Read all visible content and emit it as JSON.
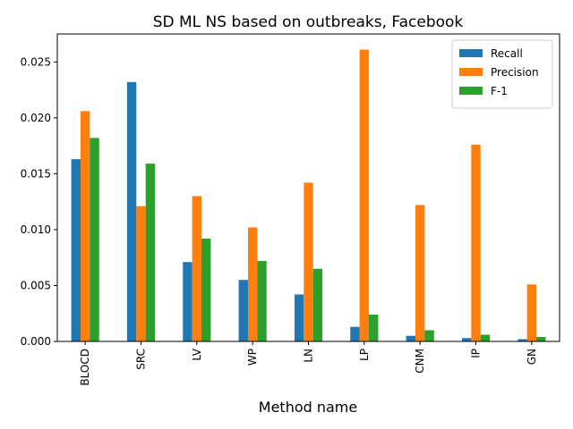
{
  "chart_data": {
    "type": "bar",
    "title": "SD ML NS based on outbreaks, Facebook",
    "xlabel": "Method name",
    "ylabel": "",
    "ylim": [
      0,
      0.0275
    ],
    "yticks": [
      "0.000",
      "0.005",
      "0.010",
      "0.015",
      "0.020",
      "0.025"
    ],
    "categories": [
      "BLOCD",
      "SRC",
      "LV",
      "WP",
      "LN",
      "LP",
      "CNM",
      "IP",
      "GN"
    ],
    "series": [
      {
        "name": "Recall",
        "color": "#1f77b4",
        "values": [
          0.0163,
          0.0232,
          0.0071,
          0.0055,
          0.0042,
          0.0013,
          0.0005,
          0.0003,
          0.0002
        ]
      },
      {
        "name": "Precision",
        "color": "#ff7f0e",
        "values": [
          0.0206,
          0.0121,
          0.013,
          0.0102,
          0.0142,
          0.0261,
          0.0122,
          0.0176,
          0.0051
        ]
      },
      {
        "name": "F-1",
        "color": "#2ca02c",
        "values": [
          0.0182,
          0.0159,
          0.0092,
          0.0072,
          0.0065,
          0.0024,
          0.001,
          0.0006,
          0.0004
        ]
      }
    ],
    "legend_position": "top-right",
    "grid": false
  }
}
